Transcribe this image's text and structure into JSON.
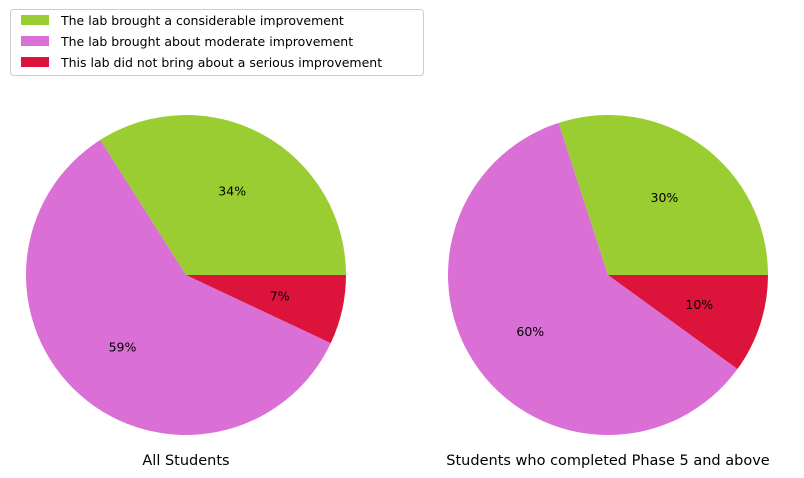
{
  "chart_data": {
    "type": "pie",
    "legend_position": "top-left",
    "legend": [
      {
        "label": "The lab brought a considerable improvement",
        "color": "#9acd32"
      },
      {
        "label": "The lab brought about moderate improvement",
        "color": "#da70d6"
      },
      {
        "label": "This lab did not bring about a serious improvement",
        "color": "#dc143c"
      }
    ],
    "charts": [
      {
        "title": "All Students",
        "slices": [
          {
            "category": "The lab brought a considerable improvement",
            "value": 34,
            "label": "34%",
            "color": "#9acd32"
          },
          {
            "category": "The lab brought about moderate improvement",
            "value": 59,
            "label": "59%",
            "color": "#da70d6"
          },
          {
            "category": "This lab did not bring about a serious improvement",
            "value": 7,
            "label": "7%",
            "color": "#dc143c"
          }
        ]
      },
      {
        "title": "Students who completed Phase 5 and above",
        "slices": [
          {
            "category": "The lab brought a considerable improvement",
            "value": 30,
            "label": "30%",
            "color": "#9acd32"
          },
          {
            "category": "The lab brought about moderate improvement",
            "value": 60,
            "label": "60%",
            "color": "#da70d6"
          },
          {
            "category": "This lab did not bring about a serious improvement",
            "value": 10,
            "label": "10%",
            "color": "#dc143c"
          }
        ]
      }
    ]
  }
}
